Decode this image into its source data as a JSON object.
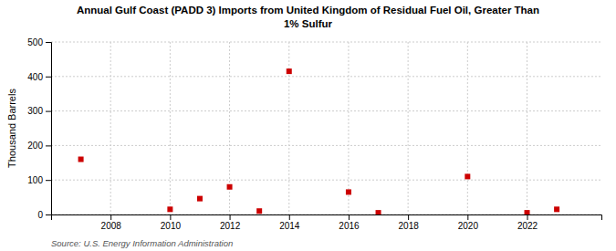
{
  "chart_data": {
    "type": "scatter",
    "title": "Annual Gulf Coast (PADD 3) Imports from United Kingdom of Residual Fuel Oil, Greater Than\n1% Sulfur",
    "ylabel": "Thousand Barrels",
    "source": "Source: U.S. Energy Information Administration",
    "x": [
      2007,
      2010,
      2011,
      2012,
      2013,
      2014,
      2016,
      2017,
      2020,
      2022,
      2023
    ],
    "values": [
      160,
      15,
      46,
      80,
      10,
      415,
      65,
      5,
      110,
      5,
      15
    ],
    "color": "#cc0000",
    "marker": "square",
    "xlim": [
      2006.0,
      2024.5
    ],
    "xticks": [
      2008,
      2010,
      2012,
      2014,
      2016,
      2018,
      2020,
      2022
    ],
    "ylim": [
      0,
      500
    ],
    "yticks": [
      0,
      100,
      200,
      300,
      400,
      500
    ],
    "grid": true
  }
}
